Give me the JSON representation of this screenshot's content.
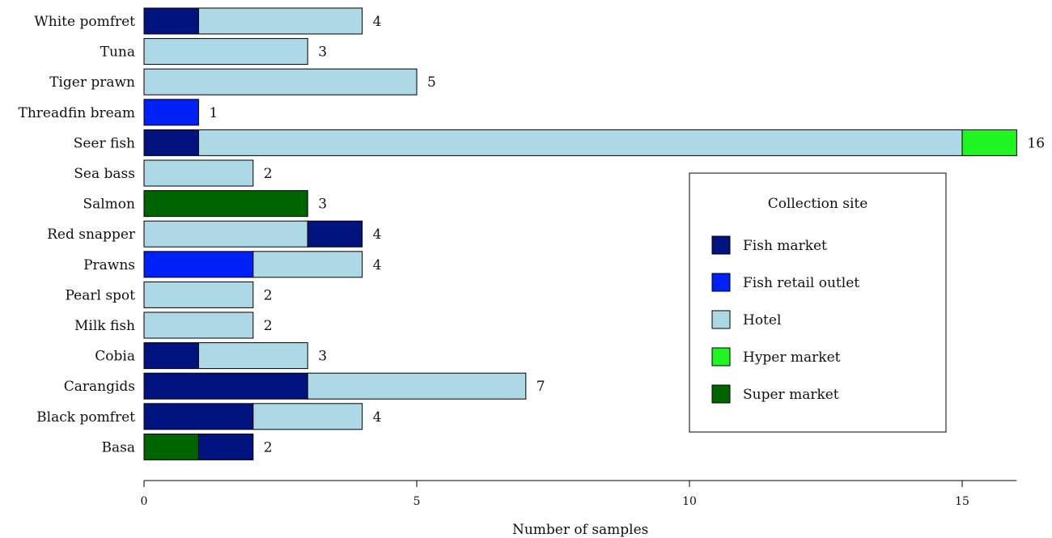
{
  "chart_data": {
    "type": "bar",
    "orientation": "horizontal",
    "stacked": true,
    "categories": [
      "White pomfret",
      "Tuna",
      "Tiger prawn",
      "Threadfin bream",
      "Seer fish",
      "Sea bass",
      "Salmon",
      "Red snapper",
      "Prawns",
      "Pearl spot",
      "Milk fish",
      "Cobia",
      "Carangids",
      "Black pomfret",
      "Basa"
    ],
    "totals": [
      4,
      3,
      5,
      1,
      16,
      2,
      3,
      4,
      4,
      2,
      2,
      3,
      7,
      4,
      2
    ],
    "segments": [
      [
        {
          "site": "Fish market",
          "value": 1
        },
        {
          "site": "Hotel",
          "value": 3
        }
      ],
      [
        {
          "site": "Hotel",
          "value": 3
        }
      ],
      [
        {
          "site": "Hotel",
          "value": 5
        }
      ],
      [
        {
          "site": "Fish retail outlet",
          "value": 1
        }
      ],
      [
        {
          "site": "Fish market",
          "value": 1
        },
        {
          "site": "Hotel",
          "value": 14
        },
        {
          "site": "Hyper market",
          "value": 1
        }
      ],
      [
        {
          "site": "Hotel",
          "value": 2
        }
      ],
      [
        {
          "site": "Super market",
          "value": 3
        }
      ],
      [
        {
          "site": "Hotel",
          "value": 3
        },
        {
          "site": "Fish market",
          "value": 1
        }
      ],
      [
        {
          "site": "Fish retail outlet",
          "value": 2
        },
        {
          "site": "Hotel",
          "value": 2
        }
      ],
      [
        {
          "site": "Hotel",
          "value": 2
        }
      ],
      [
        {
          "site": "Hotel",
          "value": 2
        }
      ],
      [
        {
          "site": "Fish market",
          "value": 1
        },
        {
          "site": "Hotel",
          "value": 2
        }
      ],
      [
        {
          "site": "Fish market",
          "value": 3
        },
        {
          "site": "Hotel",
          "value": 4
        }
      ],
      [
        {
          "site": "Fish market",
          "value": 2
        },
        {
          "site": "Hotel",
          "value": 2
        }
      ],
      [
        {
          "site": "Super market",
          "value": 1
        },
        {
          "site": "Fish market",
          "value": 1
        }
      ]
    ],
    "xlabel": "Number of samples",
    "ylabel": "",
    "xlim": [
      0,
      16
    ],
    "xticks": [
      0,
      5,
      10,
      15
    ],
    "grid": false,
    "legend": {
      "title": "Collection site",
      "placement": "center-right",
      "entries": [
        {
          "name": "Fish market",
          "color": "#00137f"
        },
        {
          "name": "Fish retail outlet",
          "color": "#0021f5"
        },
        {
          "name": "Hotel",
          "color": "#add8e6"
        },
        {
          "name": "Hyper market",
          "color": "#21f521"
        },
        {
          "name": "Super market",
          "color": "#006400"
        }
      ]
    }
  }
}
